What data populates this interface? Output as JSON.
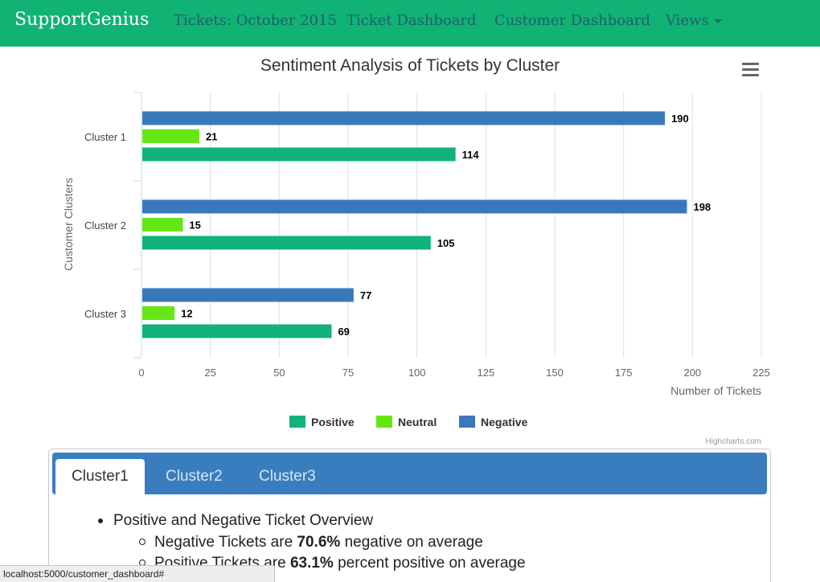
{
  "navbar": {
    "brand": "SupportGenius",
    "links": [
      "Tickets: October 2015",
      "Ticket Dashboard",
      "Customer Dashboard",
      "Views"
    ]
  },
  "chart_data": {
    "type": "bar",
    "orientation": "horizontal",
    "title": "Sentiment Analysis of Tickets by Cluster",
    "xlabel": "Number of Tickets",
    "ylabel": "Customer Clusters",
    "categories": [
      "Cluster 1",
      "Cluster 2",
      "Cluster 3"
    ],
    "series": [
      {
        "name": "Negative",
        "values": [
          190,
          198,
          77
        ],
        "color": "#3a78bd"
      },
      {
        "name": "Neutral",
        "values": [
          21,
          15,
          12
        ],
        "color": "#66e616"
      },
      {
        "name": "Positive",
        "values": [
          114,
          105,
          69
        ],
        "color": "#12b37a"
      }
    ],
    "legend_order": [
      "Positive",
      "Neutral",
      "Negative"
    ],
    "xlim": [
      0,
      225
    ],
    "xticks": [
      0,
      25,
      50,
      75,
      100,
      125,
      150,
      175,
      200,
      225
    ],
    "grid": true,
    "legend_position": "bottom",
    "credits": "Highcharts.com"
  },
  "tabs": [
    "Cluster1",
    "Cluster2",
    "Cluster3"
  ],
  "overview": {
    "heading": "Positive and Negative Ticket Overview",
    "negative_prefix": "Negative Tickets are ",
    "negative_value": "70.6%",
    "negative_suffix": " negative on average",
    "positive_prefix": "Positive Tickets are ",
    "positive_value": "63.1%",
    "positive_suffix": " percent positive on average"
  },
  "status_url": "localhost:5000/customer_dashboard#"
}
